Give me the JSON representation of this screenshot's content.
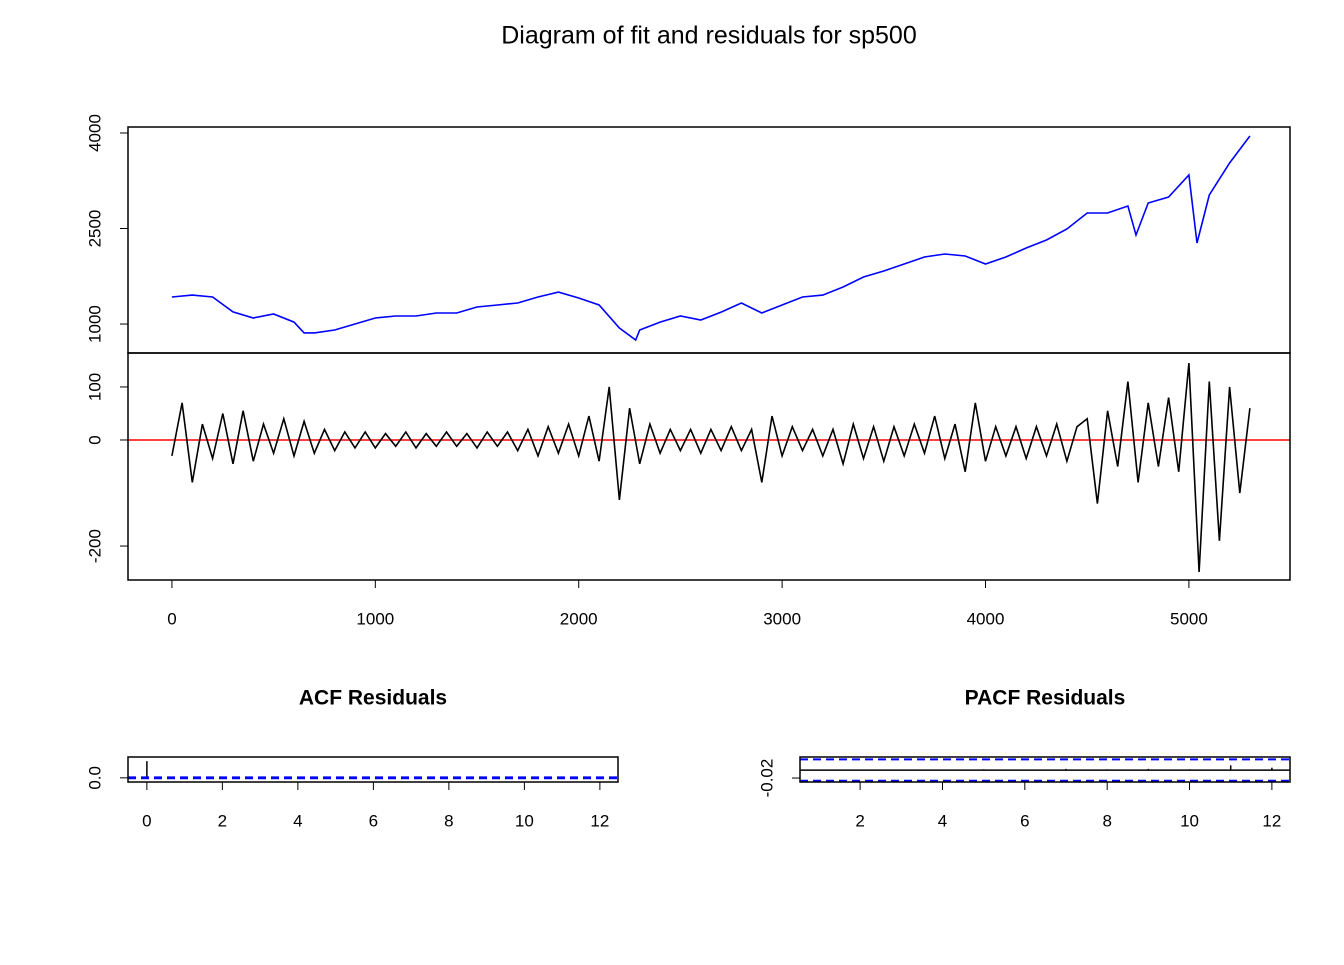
{
  "title": "Diagram of fit and residuals for sp500",
  "chart_data": [
    {
      "type": "line",
      "x": [
        0,
        100,
        200,
        300,
        400,
        500,
        600,
        650,
        700,
        800,
        900,
        1000,
        1100,
        1200,
        1300,
        1400,
        1500,
        1600,
        1700,
        1800,
        1900,
        2000,
        2100,
        2200,
        2280,
        2300,
        2400,
        2500,
        2600,
        2700,
        2800,
        2900,
        3000,
        3100,
        3200,
        3300,
        3400,
        3500,
        3600,
        3700,
        3800,
        3900,
        4000,
        4100,
        4200,
        4300,
        4400,
        4500,
        4600,
        4700,
        4740,
        4800,
        4900,
        5000,
        5040,
        5100,
        5200,
        5300
      ],
      "series": [
        {
          "color": "#0000ff",
          "values": [
            1424,
            1455,
            1424,
            1190,
            1094,
            1157,
            1031,
            860,
            860,
            906,
            1000,
            1094,
            1126,
            1126,
            1173,
            1173,
            1267,
            1298,
            1330,
            1424,
            1502,
            1408,
            1298,
            937,
            749,
            906,
            1031,
            1126,
            1063,
            1188,
            1330,
            1173,
            1298,
            1424,
            1455,
            1581,
            1738,
            1832,
            1942,
            2052,
            2099,
            2068,
            1942,
            2052,
            2194,
            2319,
            2492,
            2743,
            2743,
            2853,
            2398,
            2900,
            2994,
            3340,
            2272,
            3026,
            3528,
            3953
          ]
        }
      ],
      "xlim": [
        -216,
        5497
      ],
      "ylim": [
        545,
        4094
      ],
      "yticks": [
        1000,
        2500,
        4000
      ]
    },
    {
      "type": "line",
      "x": [
        0,
        50,
        100,
        150,
        200,
        250,
        300,
        350,
        400,
        450,
        500,
        550,
        600,
        650,
        700,
        750,
        800,
        850,
        900,
        950,
        1000,
        1050,
        1100,
        1150,
        1200,
        1250,
        1300,
        1350,
        1400,
        1450,
        1500,
        1550,
        1600,
        1650,
        1700,
        1750,
        1800,
        1850,
        1900,
        1950,
        2000,
        2050,
        2100,
        2150,
        2200,
        2250,
        2300,
        2350,
        2400,
        2450,
        2500,
        2550,
        2600,
        2650,
        2700,
        2750,
        2800,
        2850,
        2900,
        2950,
        3000,
        3050,
        3100,
        3150,
        3200,
        3250,
        3300,
        3350,
        3400,
        3450,
        3500,
        3550,
        3600,
        3650,
        3700,
        3750,
        3800,
        3850,
        3900,
        3950,
        4000,
        4050,
        4100,
        4150,
        4200,
        4250,
        4300,
        4350,
        4400,
        4450,
        4500,
        4550,
        4600,
        4650,
        4700,
        4750,
        4800,
        4850,
        4900,
        4950,
        5000,
        5050,
        5100,
        5150,
        5200,
        5250,
        5300
      ],
      "series": [
        {
          "color": "#000000",
          "values": [
            -30,
            70,
            -80,
            30,
            -35,
            50,
            -45,
            55,
            -40,
            30,
            -25,
            40,
            -30,
            35,
            -25,
            20,
            -20,
            15,
            -15,
            15,
            -15,
            12,
            -12,
            15,
            -15,
            12,
            -12,
            15,
            -12,
            12,
            -15,
            15,
            -12,
            15,
            -20,
            20,
            -30,
            25,
            -25,
            30,
            -30,
            45,
            -40,
            100,
            -113,
            60,
            -45,
            30,
            -25,
            20,
            -20,
            20,
            -25,
            20,
            -20,
            25,
            -20,
            20,
            -80,
            45,
            -30,
            25,
            -20,
            20,
            -30,
            20,
            -45,
            30,
            -35,
            25,
            -40,
            25,
            -30,
            30,
            -25,
            45,
            -35,
            30,
            -60,
            70,
            -40,
            25,
            -30,
            25,
            -35,
            25,
            -30,
            30,
            -40,
            25,
            40,
            -120,
            55,
            -50,
            110,
            -80,
            70,
            -50,
            80,
            -60,
            145,
            -249,
            110,
            -190,
            100,
            -100,
            60
          ]
        }
      ],
      "hline": {
        "value": 0,
        "color": "#ff0000"
      },
      "xlim": [
        -216,
        5497
      ],
      "xticks": [
        0,
        1000,
        2000,
        3000,
        4000,
        5000
      ],
      "ylim": [
        -264,
        164
      ],
      "yticks": [
        -200,
        0,
        100
      ]
    },
    {
      "type": "bar",
      "title": "ACF Residuals",
      "x": [
        0,
        1,
        2,
        3,
        4,
        5,
        6,
        7,
        8,
        9,
        10,
        11,
        12
      ],
      "values": [
        1,
        0,
        0,
        0,
        0,
        0,
        0,
        0,
        0,
        0,
        0,
        0,
        0
      ],
      "ci": 0.027,
      "ci_color": "#0000ff",
      "xlim": [
        -0.5,
        12.48
      ],
      "xticks": [
        0,
        2,
        4,
        6,
        8,
        10,
        12
      ],
      "ylim": [
        -0.25,
        1.25
      ],
      "yticks": [
        {
          "value": 0,
          "label": "0.0"
        }
      ]
    },
    {
      "type": "bar",
      "title": "PACF Residuals",
      "x": [
        1,
        2,
        3,
        4,
        5,
        6,
        7,
        8,
        9,
        10,
        11,
        12
      ],
      "values": [
        0.001,
        -0.001,
        0.001,
        0.001,
        0.002,
        0.001,
        0.003,
        0.002,
        0.003,
        0.002,
        0.012,
        0.006
      ],
      "ci": 0.027,
      "ci_color": "#0000ff",
      "hline": {
        "value": 0,
        "color": "#000000"
      },
      "xlim": [
        0.54,
        12.44
      ],
      "xticks": [
        2,
        4,
        6,
        8,
        10,
        12
      ],
      "ylim": [
        -0.03,
        0.033
      ],
      "yticks": [
        -0.02
      ]
    }
  ]
}
